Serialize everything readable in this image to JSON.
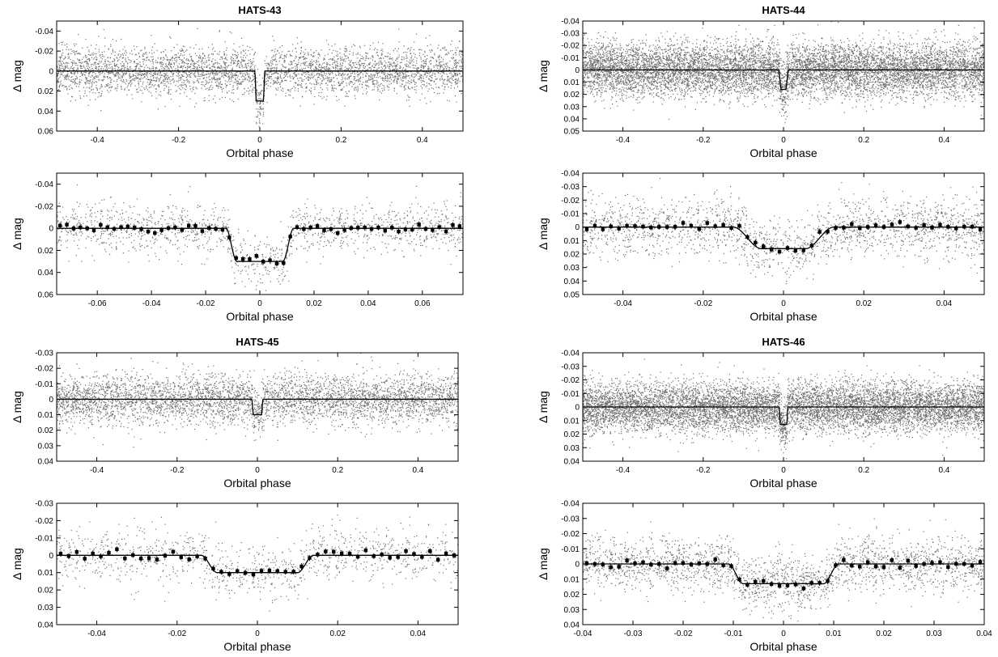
{
  "chart_data": [
    {
      "type": "scatter",
      "title": "HATS-43",
      "xlabel": "Orbital phase",
      "ylabel": "Δ mag",
      "xlim": [
        -0.5,
        0.5
      ],
      "ylim": [
        -0.05,
        0.06
      ],
      "y_inverted": true,
      "xticks": [
        -0.4,
        -0.2,
        0,
        0.2,
        0.4
      ],
      "xtick_labels": [
        "-0.4",
        "-0.2",
        "0",
        "0.2",
        "0.4"
      ],
      "yticks": [
        -0.04,
        -0.02,
        0,
        0.02,
        0.04,
        0.06
      ],
      "ytick_labels": [
        "-0.04",
        "-0.02",
        "0",
        "0.02",
        "0.04",
        "0.06"
      ],
      "model": {
        "depth": 0.03,
        "half_width": 0.0125,
        "ingress": 0.004
      },
      "scatter": {
        "n": 4000,
        "sigma": 0.012
      },
      "binned": {
        "step": 0,
        "sigma": 0
      },
      "colors": {
        "points": "#6e6e6e",
        "model": "#000000",
        "binned": "#000000"
      }
    },
    {
      "type": "scatter",
      "title": "",
      "xlabel": "Orbital phase",
      "ylabel": "Δ mag",
      "xlim": [
        -0.075,
        0.075
      ],
      "ylim": [
        -0.05,
        0.06
      ],
      "y_inverted": true,
      "xticks": [
        -0.06,
        -0.04,
        -0.02,
        0,
        0.02,
        0.04,
        0.06
      ],
      "xtick_labels": [
        "-0.06",
        "-0.04",
        "-0.02",
        "0",
        "0.02",
        "0.04",
        "0.06"
      ],
      "yticks": [
        -0.04,
        -0.02,
        0,
        0.02,
        0.04,
        0.06
      ],
      "ytick_labels": [
        "-0.04",
        "-0.02",
        "0",
        "0.02",
        "0.04",
        "0.06"
      ],
      "model": {
        "depth": 0.03,
        "half_width": 0.0125,
        "ingress": 0.004
      },
      "scatter": {
        "n": 1400,
        "sigma": 0.012
      },
      "binned": {
        "step": 0.0025,
        "sigma": 0.0022
      },
      "colors": {
        "points": "#6e6e6e",
        "model": "#000000",
        "binned": "#000000"
      }
    },
    {
      "type": "scatter",
      "title": "HATS-44",
      "xlabel": "Orbital phase",
      "ylabel": "Δ mag",
      "xlim": [
        -0.5,
        0.5
      ],
      "ylim": [
        -0.04,
        0.05
      ],
      "y_inverted": true,
      "xticks": [
        -0.4,
        -0.2,
        0,
        0.2,
        0.4
      ],
      "xtick_labels": [
        "-0.4",
        "-0.2",
        "0",
        "0.2",
        "0.4"
      ],
      "yticks": [
        -0.04,
        -0.03,
        -0.02,
        -0.01,
        0,
        0.01,
        0.02,
        0.03,
        0.04,
        0.05
      ],
      "ytick_labels": [
        "-0.04",
        "-0.03",
        "-0.02",
        "-0.01",
        "0",
        "0.01",
        "0.02",
        "0.03",
        "0.04",
        "0.05"
      ],
      "model": {
        "depth": 0.016,
        "half_width": 0.0125,
        "ingress": 0.007
      },
      "scatter": {
        "n": 9000,
        "sigma": 0.011
      },
      "binned": {
        "step": 0,
        "sigma": 0
      },
      "colors": {
        "points": "#6e6e6e",
        "model": "#000000",
        "binned": "#000000"
      }
    },
    {
      "type": "scatter",
      "title": "",
      "xlabel": "Orbital phase",
      "ylabel": "Δ mag",
      "xlim": [
        -0.05,
        0.05
      ],
      "ylim": [
        -0.04,
        0.05
      ],
      "y_inverted": true,
      "xticks": [
        -0.04,
        -0.02,
        0,
        0.02,
        0.04
      ],
      "xtick_labels": [
        "-0.04",
        "-0.02",
        "0",
        "0.02",
        "0.04"
      ],
      "yticks": [
        -0.04,
        -0.03,
        -0.02,
        -0.01,
        0,
        0.01,
        0.02,
        0.03,
        0.04,
        0.05
      ],
      "ytick_labels": [
        "-0.04",
        "-0.03",
        "-0.02",
        "-0.01",
        "0",
        "0.01",
        "0.02",
        "0.03",
        "0.04",
        "0.05"
      ],
      "model": {
        "depth": 0.016,
        "half_width": 0.0125,
        "ingress": 0.007
      },
      "scatter": {
        "n": 1900,
        "sigma": 0.011
      },
      "binned": {
        "step": 0.002,
        "sigma": 0.0015
      },
      "colors": {
        "points": "#6e6e6e",
        "model": "#000000",
        "binned": "#000000"
      }
    },
    {
      "type": "scatter",
      "title": "HATS-45",
      "xlabel": "Orbital phase",
      "ylabel": "Δ mag",
      "xlim": [
        -0.5,
        0.5
      ],
      "ylim": [
        -0.03,
        0.04
      ],
      "y_inverted": true,
      "xticks": [
        -0.4,
        -0.2,
        0,
        0.2,
        0.4
      ],
      "xtick_labels": [
        "-0.4",
        "-0.2",
        "0",
        "0.2",
        "0.4"
      ],
      "yticks": [
        -0.03,
        -0.02,
        -0.01,
        0,
        0.01,
        0.02,
        0.03,
        0.04
      ],
      "ytick_labels": [
        "-0.03",
        "-0.02",
        "-0.01",
        "0",
        "0.01",
        "0.02",
        "0.03",
        "0.04"
      ],
      "model": {
        "depth": 0.01,
        "half_width": 0.014,
        "ingress": 0.004
      },
      "scatter": {
        "n": 4500,
        "sigma": 0.008
      },
      "binned": {
        "step": 0,
        "sigma": 0
      },
      "colors": {
        "points": "#6e6e6e",
        "model": "#000000",
        "binned": "#000000"
      }
    },
    {
      "type": "scatter",
      "title": "",
      "xlabel": "Orbital phase",
      "ylabel": "Δ mag",
      "xlim": [
        -0.05,
        0.05
      ],
      "ylim": [
        -0.03,
        0.04
      ],
      "y_inverted": true,
      "xticks": [
        -0.04,
        -0.02,
        0,
        0.02,
        0.04
      ],
      "xtick_labels": [
        "-0.04",
        "-0.02",
        "0",
        "0.02",
        "0.04"
      ],
      "yticks": [
        -0.03,
        -0.02,
        -0.01,
        0,
        0.01,
        0.02,
        0.03,
        0.04
      ],
      "ytick_labels": [
        "-0.03",
        "-0.02",
        "-0.01",
        "0",
        "0.01",
        "0.02",
        "0.03",
        "0.04"
      ],
      "model": {
        "depth": 0.01,
        "half_width": 0.014,
        "ingress": 0.004
      },
      "scatter": {
        "n": 1100,
        "sigma": 0.008
      },
      "binned": {
        "step": 0.002,
        "sigma": 0.0018
      },
      "colors": {
        "points": "#6e6e6e",
        "model": "#000000",
        "binned": "#000000"
      }
    },
    {
      "type": "scatter",
      "title": "HATS-46",
      "xlabel": "Orbital phase",
      "ylabel": "Δ mag",
      "xlim": [
        -0.5,
        0.5
      ],
      "ylim": [
        -0.04,
        0.04
      ],
      "y_inverted": true,
      "xticks": [
        -0.4,
        -0.2,
        0,
        0.2,
        0.4
      ],
      "xtick_labels": [
        "-0.4",
        "-0.2",
        "0",
        "0.2",
        "0.4"
      ],
      "yticks": [
        -0.04,
        -0.03,
        -0.02,
        -0.01,
        0,
        0.01,
        0.02,
        0.03,
        0.04
      ],
      "ytick_labels": [
        "-0.04",
        "-0.03",
        "-0.02",
        "-0.01",
        "0",
        "0.01",
        "0.02",
        "0.03",
        "0.04"
      ],
      "model": {
        "depth": 0.013,
        "half_width": 0.011,
        "ingress": 0.003
      },
      "scatter": {
        "n": 9000,
        "sigma": 0.009
      },
      "binned": {
        "step": 0,
        "sigma": 0
      },
      "colors": {
        "points": "#6e6e6e",
        "model": "#000000",
        "binned": "#000000"
      }
    },
    {
      "type": "scatter",
      "title": "",
      "xlabel": "Orbital phase",
      "ylabel": "Δ mag",
      "xlim": [
        -0.04,
        0.04
      ],
      "ylim": [
        -0.04,
        0.04
      ],
      "y_inverted": true,
      "xticks": [
        -0.04,
        -0.03,
        -0.02,
        -0.01,
        0,
        0.01,
        0.02,
        0.03,
        0.04
      ],
      "xtick_labels": [
        "-0.04",
        "-0.03",
        "-0.02",
        "-0.01",
        "0",
        "0.01",
        "0.02",
        "0.03",
        "0.04"
      ],
      "yticks": [
        -0.04,
        -0.03,
        -0.02,
        -0.01,
        0,
        0.01,
        0.02,
        0.03,
        0.04
      ],
      "ytick_labels": [
        "-0.04",
        "-0.03",
        "-0.02",
        "-0.01",
        "0",
        "0.01",
        "0.02",
        "0.03",
        "0.04"
      ],
      "model": {
        "depth": 0.013,
        "half_width": 0.011,
        "ingress": 0.003
      },
      "scatter": {
        "n": 2300,
        "sigma": 0.009
      },
      "binned": {
        "step": 0.0016,
        "sigma": 0.0012
      },
      "colors": {
        "points": "#6e6e6e",
        "model": "#000000",
        "binned": "#000000"
      }
    }
  ]
}
